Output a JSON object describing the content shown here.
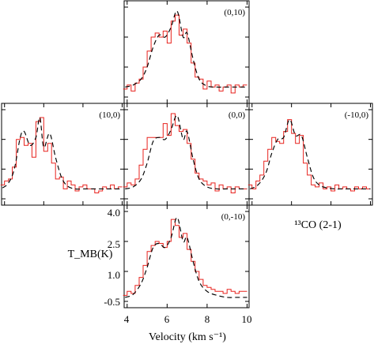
{
  "chart_data": {
    "type": "line",
    "line_label": "¹³CO (2-1)",
    "xlabel": "Velocity (km s⁻¹)",
    "ylabel": "T_MB(K)",
    "xlim": [
      3.85,
      10.1
    ],
    "ylim": [
      -0.5,
      4.0
    ],
    "x_ticks": [
      4,
      6,
      8,
      10
    ],
    "y_ticks": [
      4.0,
      2.5,
      1.0,
      -0.5
    ],
    "x_tick_labels": [
      "4",
      "6",
      "8",
      "10"
    ],
    "y_tick_labels": [
      "4.0",
      "2.5",
      "1.0",
      "-0.5"
    ],
    "series_styles": {
      "observed": {
        "color": "#e8231e",
        "style": "histogram"
      },
      "model": {
        "color": "#000000",
        "style": "dashed"
      }
    },
    "panels": [
      {
        "label": "(0,10)",
        "observed": {
          "x": [
            3.9,
            4.1,
            4.3,
            4.5,
            4.7,
            4.9,
            5.1,
            5.3,
            5.5,
            5.7,
            5.9,
            6.1,
            6.3,
            6.5,
            6.7,
            6.9,
            7.1,
            7.3,
            7.5,
            7.7,
            7.9,
            8.1,
            8.3,
            8.5,
            8.7,
            8.9,
            9.1,
            9.3,
            9.5,
            9.7,
            9.9
          ],
          "y": [
            -0.1,
            0.1,
            -0.2,
            0.2,
            0.4,
            1.0,
            1.8,
            2.5,
            2.7,
            2.5,
            2.8,
            2.2,
            3.3,
            3.6,
            2.6,
            2.9,
            2.2,
            1.2,
            0.5,
            0.4,
            -0.1,
            0.3,
            0.0,
            0.1,
            -0.2,
            0.0,
            0.1,
            -0.3,
            0.1,
            0.0,
            0.1
          ]
        },
        "model": {
          "x": [
            3.9,
            4.3,
            4.7,
            5.0,
            5.3,
            5.6,
            5.9,
            6.2,
            6.5,
            6.8,
            7.0,
            7.3,
            7.6,
            8.0,
            8.5,
            9.0,
            9.5,
            10.0
          ],
          "y": [
            0.0,
            0.1,
            0.4,
            1.0,
            2.0,
            2.6,
            2.5,
            3.0,
            3.8,
            2.5,
            2.7,
            1.4,
            0.4,
            0.05,
            0.0,
            0.0,
            0.0,
            0.0
          ]
        }
      },
      {
        "label": "(10,0)",
        "observed": {
          "x": [
            3.9,
            4.1,
            4.3,
            4.5,
            4.7,
            4.9,
            5.1,
            5.3,
            5.5,
            5.7,
            5.9,
            6.1,
            6.3,
            6.5,
            6.7,
            6.9,
            7.1,
            7.3,
            7.5,
            7.7,
            7.9,
            8.1,
            8.3,
            8.5,
            8.7,
            8.9,
            9.1,
            9.3,
            9.5,
            9.7,
            9.9
          ],
          "y": [
            0.2,
            0.4,
            0.5,
            1.1,
            2.5,
            2.6,
            2.2,
            2.3,
            1.6,
            3.4,
            3.6,
            1.9,
            2.3,
            1.3,
            0.5,
            0.6,
            0.0,
            0.4,
            0.2,
            -0.1,
            0.1,
            0.2,
            0.0,
            0.0,
            -0.2,
            -0.1,
            0.1,
            0.0,
            0.2,
            0.0,
            0.1
          ]
        },
        "model": {
          "x": [
            3.9,
            4.2,
            4.5,
            4.8,
            5.0,
            5.3,
            5.6,
            5.8,
            6.0,
            6.3,
            6.6,
            6.9,
            7.2,
            7.6,
            8.0,
            8.5,
            9.0,
            10.0
          ],
          "y": [
            0.05,
            0.3,
            1.0,
            2.6,
            2.9,
            2.2,
            2.6,
            3.6,
            2.1,
            2.8,
            1.6,
            0.6,
            0.15,
            0.0,
            0.0,
            0.0,
            0.0,
            0.0
          ]
        }
      },
      {
        "label": "(0,0)",
        "observed": {
          "x": [
            3.9,
            4.1,
            4.3,
            4.5,
            4.7,
            4.9,
            5.1,
            5.3,
            5.5,
            5.7,
            5.9,
            6.1,
            6.3,
            6.5,
            6.7,
            6.9,
            7.1,
            7.3,
            7.5,
            7.7,
            7.9,
            8.1,
            8.3,
            8.5,
            8.7,
            8.9,
            9.1,
            9.3,
            9.5,
            9.7,
            9.9
          ],
          "y": [
            0.1,
            0.3,
            0.2,
            0.5,
            1.2,
            2.0,
            2.6,
            2.6,
            2.6,
            2.6,
            3.3,
            2.7,
            3.8,
            3.2,
            2.9,
            3.0,
            2.3,
            1.5,
            0.8,
            0.5,
            0.4,
            0.2,
            0.3,
            -0.1,
            0.2,
            0.0,
            0.1,
            -0.2,
            0.1,
            0.0,
            0.0
          ]
        },
        "model": {
          "x": [
            3.9,
            4.3,
            4.7,
            5.0,
            5.3,
            5.6,
            5.9,
            6.2,
            6.5,
            6.8,
            7.0,
            7.3,
            7.6,
            8.0,
            8.5,
            9.0,
            9.5,
            10.0
          ],
          "y": [
            0.0,
            0.1,
            0.5,
            1.3,
            2.4,
            2.6,
            2.5,
            3.0,
            3.7,
            2.5,
            2.9,
            1.5,
            0.5,
            0.1,
            0.0,
            0.0,
            0.0,
            0.0
          ]
        }
      },
      {
        "label": "(-10,0)",
        "observed": {
          "x": [
            3.9,
            4.1,
            4.3,
            4.5,
            4.7,
            4.9,
            5.1,
            5.3,
            5.5,
            5.7,
            5.9,
            6.1,
            6.3,
            6.5,
            6.7,
            6.9,
            7.1,
            7.3,
            7.5,
            7.7,
            7.9,
            8.1,
            8.3,
            8.5,
            8.7,
            8.9,
            9.1,
            9.3,
            9.5,
            9.7,
            9.9
          ],
          "y": [
            0.2,
            0.0,
            0.4,
            0.7,
            1.4,
            2.0,
            2.6,
            2.4,
            2.3,
            2.9,
            3.5,
            2.8,
            2.3,
            2.7,
            1.3,
            0.7,
            0.2,
            0.1,
            0.3,
            0.0,
            0.1,
            -0.1,
            0.2,
            0.0,
            0.1,
            0.0,
            -0.1,
            0.1,
            0.0,
            0.1,
            0.0
          ]
        },
        "model": {
          "x": [
            3.9,
            4.3,
            4.7,
            5.0,
            5.3,
            5.6,
            5.9,
            6.2,
            6.5,
            6.8,
            7.1,
            7.4,
            7.8,
            8.2,
            8.6,
            9.0,
            9.5,
            10.0
          ],
          "y": [
            0.0,
            0.2,
            0.8,
            1.8,
            2.5,
            2.6,
            3.5,
            2.7,
            2.7,
            1.6,
            0.6,
            0.2,
            0.05,
            0.0,
            0.0,
            0.0,
            0.0,
            0.0
          ]
        }
      },
      {
        "label": "(0,-10)",
        "observed": {
          "x": [
            3.9,
            4.1,
            4.3,
            4.5,
            4.7,
            4.9,
            5.1,
            5.3,
            5.5,
            5.7,
            5.9,
            6.1,
            6.3,
            6.5,
            6.7,
            6.9,
            7.1,
            7.3,
            7.5,
            7.7,
            7.9,
            8.1,
            8.3,
            8.5,
            8.7,
            8.9,
            9.1,
            9.3,
            9.5,
            9.7,
            9.9
          ],
          "y": [
            -0.2,
            0.0,
            -0.1,
            0.3,
            0.7,
            1.3,
            2.0,
            2.3,
            2.5,
            2.4,
            2.2,
            2.5,
            3.6,
            3.3,
            2.7,
            2.9,
            2.1,
            1.5,
            1.0,
            0.6,
            0.3,
            0.2,
            0.1,
            0.0,
            0.0,
            -0.1,
            0.1,
            0.0,
            -0.1,
            0.0,
            0.0
          ]
        },
        "model": {
          "x": [
            3.9,
            4.3,
            4.7,
            5.0,
            5.3,
            5.6,
            5.9,
            6.2,
            6.5,
            6.8,
            7.0,
            7.3,
            7.6,
            8.0,
            8.5,
            9.0,
            9.5,
            10.0
          ],
          "y": [
            -0.3,
            -0.15,
            0.4,
            1.2,
            2.2,
            2.4,
            2.2,
            2.7,
            3.7,
            2.5,
            2.7,
            1.5,
            0.5,
            0.0,
            -0.2,
            -0.3,
            -0.3,
            -0.3
          ]
        }
      }
    ]
  }
}
